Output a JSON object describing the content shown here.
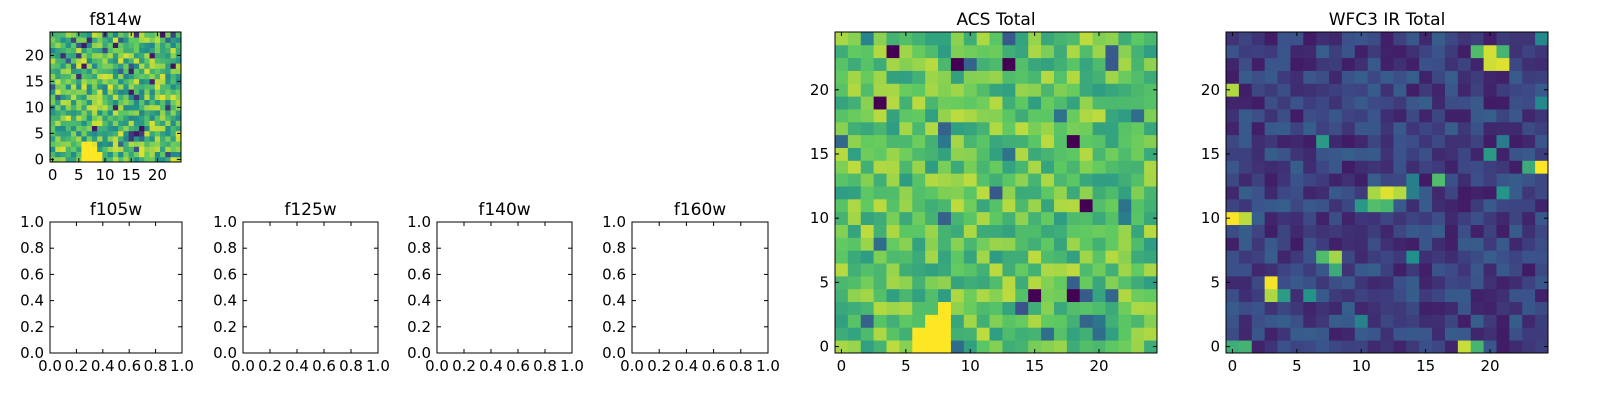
{
  "figure_title": "",
  "chart_data": [
    {
      "type": "heatmap",
      "title": "f814w",
      "xlabel": "",
      "ylabel": "",
      "xlim": [
        -0.5,
        24.5
      ],
      "ylim": [
        -0.5,
        24.5
      ],
      "xticks": [
        0,
        5,
        10,
        15,
        20
      ],
      "yticks": [
        0,
        5,
        10,
        15,
        20
      ],
      "grid_size": [
        25,
        25
      ],
      "colormap": "viridis",
      "description": "noisy 25x25 image, mostly green-yellow values with a bright yellow blob near x=6-9, y=0-3"
    },
    {
      "type": "empty",
      "title": "f105w",
      "xlim": [
        0,
        1
      ],
      "ylim": [
        0,
        1
      ],
      "xticks": [
        "0.0",
        "0.2",
        "0.4",
        "0.6",
        "0.8",
        "1.0"
      ],
      "yticks": [
        "0.0",
        "0.2",
        "0.4",
        "0.6",
        "0.8",
        "1.0"
      ]
    },
    {
      "type": "empty",
      "title": "f125w",
      "xlim": [
        0,
        1
      ],
      "ylim": [
        0,
        1
      ],
      "xticks": [
        "0.0",
        "0.2",
        "0.4",
        "0.6",
        "0.8",
        "1.0"
      ],
      "yticks": [
        "0.0",
        "0.2",
        "0.4",
        "0.6",
        "0.8",
        "1.0"
      ]
    },
    {
      "type": "empty",
      "title": "f140w",
      "xlim": [
        0,
        1
      ],
      "ylim": [
        0,
        1
      ],
      "xticks": [
        "0.0",
        "0.2",
        "0.4",
        "0.6",
        "0.8",
        "1.0"
      ],
      "yticks": [
        "0.0",
        "0.2",
        "0.4",
        "0.6",
        "0.8",
        "1.0"
      ]
    },
    {
      "type": "empty",
      "title": "f160w",
      "xlim": [
        0,
        1
      ],
      "ylim": [
        0,
        1
      ],
      "xticks": [
        "0.0",
        "0.2",
        "0.4",
        "0.6",
        "0.8",
        "1.0"
      ],
      "yticks": [
        "0.0",
        "0.2",
        "0.4",
        "0.6",
        "0.8",
        "1.0"
      ]
    },
    {
      "type": "heatmap",
      "title": "ACS Total",
      "xlim": [
        -0.5,
        24.5
      ],
      "ylim": [
        -0.5,
        24.5
      ],
      "xticks": [
        0,
        5,
        10,
        15,
        20
      ],
      "yticks": [
        0,
        5,
        10,
        15,
        20
      ],
      "grid_size": [
        25,
        25
      ],
      "colormap": "viridis",
      "bright_regions": [
        [
          6,
          0
        ],
        [
          7,
          0
        ],
        [
          8,
          0
        ],
        [
          6,
          1
        ],
        [
          7,
          1
        ],
        [
          8,
          1
        ],
        [
          7,
          2
        ],
        [
          8,
          2
        ],
        [
          8,
          3
        ]
      ],
      "dark_pixels": [
        [
          4,
          23
        ],
        [
          9,
          22
        ],
        [
          13,
          22
        ],
        [
          18,
          16
        ],
        [
          19,
          11
        ],
        [
          15,
          4
        ],
        [
          18,
          4
        ],
        [
          3,
          19
        ]
      ]
    },
    {
      "type": "heatmap",
      "title": "WFC3 IR Total",
      "xlim": [
        -0.5,
        24.5
      ],
      "ylim": [
        -0.5,
        24.5
      ],
      "xticks": [
        0,
        5,
        10,
        15,
        20
      ],
      "yticks": [
        0,
        5,
        10,
        15,
        20
      ],
      "grid_size": [
        25,
        25
      ],
      "colormap": "viridis",
      "bright_regions": [
        [
          20,
          22
        ],
        [
          21,
          22
        ],
        [
          11,
          12
        ],
        [
          12,
          12
        ],
        [
          13,
          12
        ],
        [
          3,
          4
        ],
        [
          3,
          5
        ],
        [
          8,
          7
        ],
        [
          0,
          10
        ],
        [
          1,
          10
        ],
        [
          24,
          14
        ],
        [
          20,
          23
        ],
        [
          18,
          0
        ],
        [
          0,
          20
        ]
      ],
      "medium_regions": [
        [
          19,
          23
        ],
        [
          21,
          23
        ],
        [
          11,
          11
        ],
        [
          12,
          11
        ],
        [
          7,
          7
        ],
        [
          8,
          6
        ],
        [
          23,
          14
        ],
        [
          16,
          13
        ],
        [
          0,
          0
        ],
        [
          1,
          0
        ],
        [
          19,
          0
        ]
      ]
    }
  ]
}
